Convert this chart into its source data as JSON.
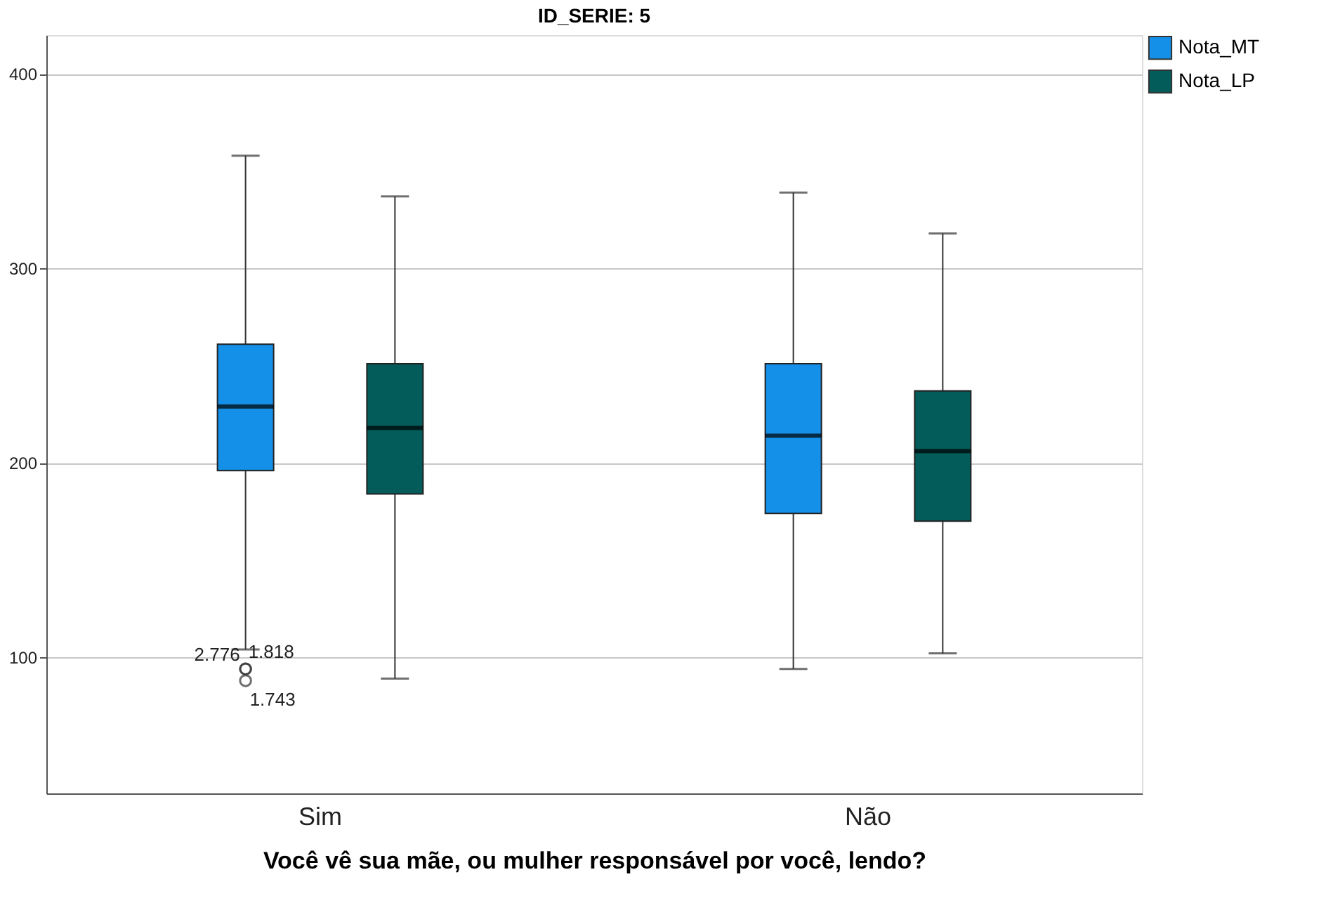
{
  "chart_data": {
    "type": "box",
    "title": "ID_SERIE: 5",
    "xlabel": "Você vê sua mãe, ou mulher responsável por você, lendo?",
    "categories": [
      "Sim",
      "Não"
    ],
    "series": [
      {
        "name": "Nota_MT",
        "color": "#1590e8",
        "boxes": [
          {
            "low": 104,
            "q1": 196,
            "median": 229,
            "q3": 261,
            "high": 358,
            "outliers": [
              94,
              94,
              88
            ]
          },
          {
            "low": 94,
            "q1": 174,
            "median": 214,
            "q3": 251,
            "high": 339
          }
        ]
      },
      {
        "name": "Nota_LP",
        "color": "#035c5a",
        "boxes": [
          {
            "low": 89,
            "q1": 184,
            "median": 218,
            "q3": 251,
            "high": 337
          },
          {
            "low": 102,
            "q1": 170,
            "median": 206,
            "q3": 237,
            "high": 318
          }
        ]
      }
    ],
    "annotations": [
      "2.776",
      "1.818",
      "1.743"
    ],
    "ylim": [
      30,
      420
    ],
    "yticks": [
      100,
      200,
      300,
      400
    ],
    "grid": "y",
    "legend": "top right"
  }
}
